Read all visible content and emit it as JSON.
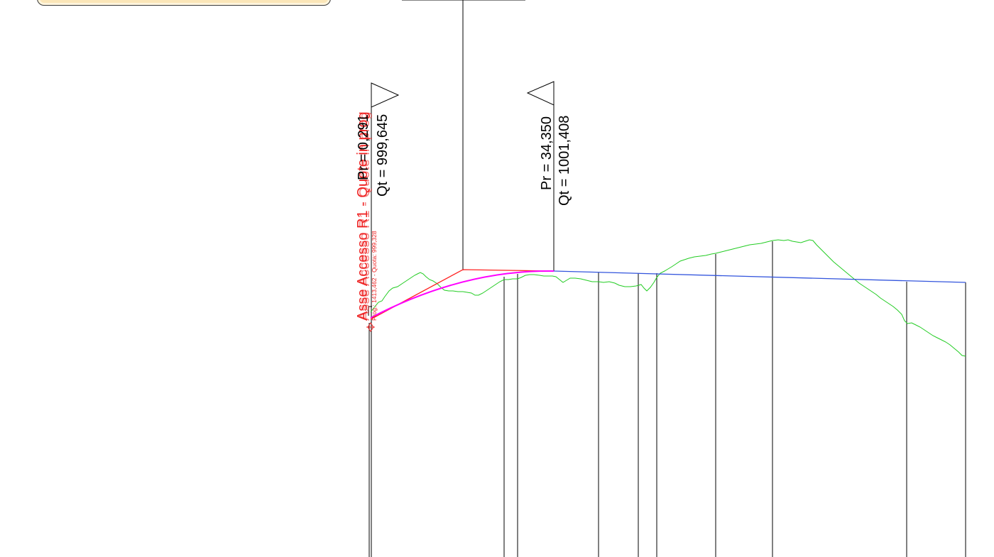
{
  "colors": {
    "terrain": "#22cc22",
    "project_line": "#3355dd",
    "tangent": "#ff2222",
    "curve": "#ff00ff",
    "labels_red": "#ee2222",
    "lines": "#000000",
    "info_box_fill": "#fbe6b8"
  },
  "axis_label": {
    "title": "Asse Accesso R1 - Quote in prog",
    "detail": "Prog.: 1413,462 - Quota: 999,328"
  },
  "vertex_left": {
    "pr": "Pr = 0,291",
    "qt": "Qt = 999,645"
  },
  "vertex_right": {
    "pr": "Pr = 34,350",
    "qt": "Qt = 1001,408"
  }
}
